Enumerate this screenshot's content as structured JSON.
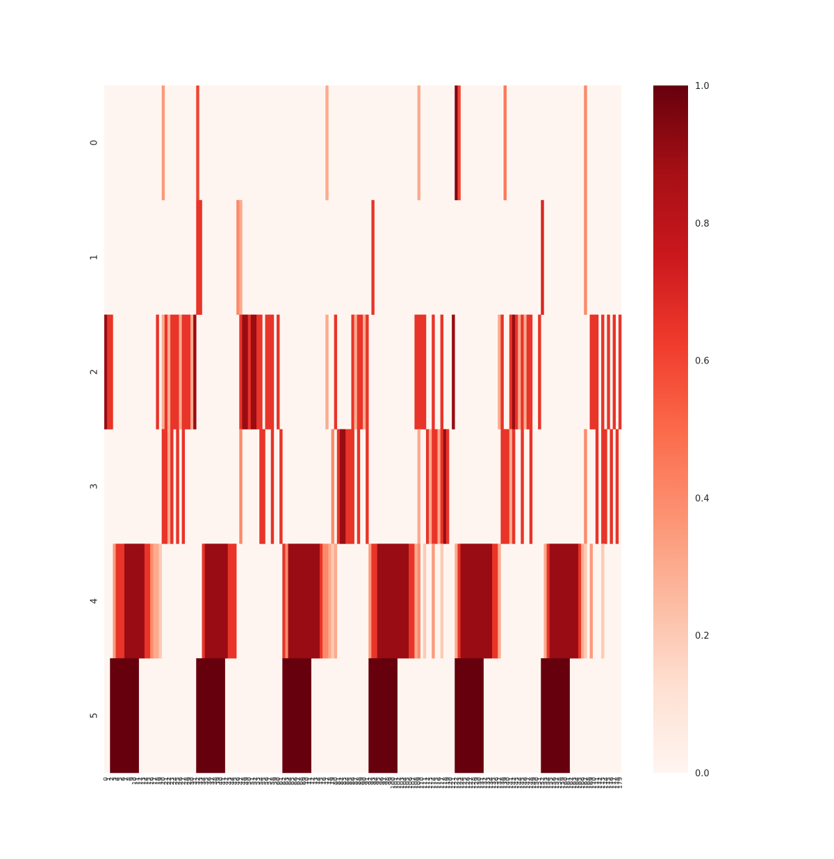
{
  "chart_data": {
    "type": "heatmap",
    "title": "",
    "xlabel": "",
    "ylabel": "",
    "n_cols": 180,
    "rows": [
      "0",
      "1",
      "2",
      "3",
      "4",
      "5"
    ],
    "colorbar": {
      "min": 0.0,
      "max": 1.0,
      "ticks": [
        "0.0",
        "0.2",
        "0.4",
        "0.6",
        "0.8",
        "1.0"
      ],
      "colormap": "Reds",
      "colors": [
        "#fff5f0",
        "#fee0d2",
        "#fcbba1",
        "#fc9272",
        "#fb6a4a",
        "#ef3b2c",
        "#cb181d",
        "#a50f15",
        "#67000d"
      ]
    },
    "cells": [
      {
        "row": 0,
        "segments": [
          [
            20,
            20,
            0.35
          ],
          [
            32,
            32,
            0.6
          ],
          [
            77,
            77,
            0.3
          ],
          [
            109,
            109,
            0.3
          ],
          [
            122,
            122,
            0.95
          ],
          [
            123,
            123,
            0.6
          ],
          [
            139,
            139,
            0.45
          ],
          [
            167,
            167,
            0.4
          ]
        ]
      },
      {
        "row": 1,
        "segments": [
          [
            32,
            33,
            0.65
          ],
          [
            46,
            46,
            0.4
          ],
          [
            47,
            47,
            0.3
          ],
          [
            93,
            93,
            0.65
          ],
          [
            152,
            152,
            0.7
          ],
          [
            167,
            167,
            0.4
          ]
        ]
      },
      {
        "row": 2,
        "segments": [
          [
            0,
            0,
            0.9
          ],
          [
            1,
            2,
            0.65
          ],
          [
            18,
            18,
            0.65
          ],
          [
            20,
            20,
            0.3
          ],
          [
            21,
            21,
            0.65
          ],
          [
            22,
            22,
            0.3
          ],
          [
            23,
            25,
            0.65
          ],
          [
            26,
            26,
            0.3
          ],
          [
            27,
            29,
            0.65
          ],
          [
            30,
            30,
            0.3
          ],
          [
            31,
            31,
            0.9
          ],
          [
            47,
            47,
            0.65
          ],
          [
            48,
            49,
            0.9
          ],
          [
            50,
            50,
            0.65
          ],
          [
            51,
            52,
            0.9
          ],
          [
            53,
            54,
            0.65
          ],
          [
            56,
            58,
            0.65
          ],
          [
            60,
            60,
            0.65
          ],
          [
            77,
            77,
            0.3
          ],
          [
            80,
            80,
            0.65
          ],
          [
            86,
            86,
            0.65
          ],
          [
            87,
            87,
            0.3
          ],
          [
            88,
            89,
            0.65
          ],
          [
            90,
            90,
            0.3
          ],
          [
            91,
            91,
            0.65
          ],
          [
            108,
            109,
            0.65
          ],
          [
            110,
            111,
            0.65
          ],
          [
            114,
            114,
            0.65
          ],
          [
            117,
            117,
            0.65
          ],
          [
            121,
            121,
            0.9
          ],
          [
            137,
            137,
            0.3
          ],
          [
            138,
            138,
            0.65
          ],
          [
            141,
            141,
            0.65
          ],
          [
            142,
            142,
            0.9
          ],
          [
            143,
            143,
            0.65
          ],
          [
            144,
            144,
            0.3
          ],
          [
            145,
            145,
            0.65
          ],
          [
            146,
            146,
            0.3
          ],
          [
            147,
            148,
            0.65
          ],
          [
            151,
            151,
            0.65
          ],
          [
            169,
            171,
            0.65
          ],
          [
            173,
            173,
            0.65
          ],
          [
            175,
            175,
            0.65
          ],
          [
            177,
            177,
            0.65
          ],
          [
            179,
            179,
            0.65
          ]
        ]
      },
      {
        "row": 3,
        "segments": [
          [
            20,
            21,
            0.65
          ],
          [
            22,
            22,
            0.3
          ],
          [
            23,
            23,
            0.65
          ],
          [
            25,
            25,
            0.65
          ],
          [
            27,
            27,
            0.65
          ],
          [
            47,
            47,
            0.4
          ],
          [
            54,
            54,
            0.65
          ],
          [
            55,
            55,
            0.65
          ],
          [
            58,
            58,
            0.65
          ],
          [
            61,
            61,
            0.65
          ],
          [
            79,
            79,
            0.4
          ],
          [
            81,
            81,
            0.65
          ],
          [
            82,
            83,
            0.9
          ],
          [
            84,
            86,
            0.65
          ],
          [
            88,
            88,
            0.65
          ],
          [
            91,
            91,
            0.65
          ],
          [
            109,
            109,
            0.3
          ],
          [
            112,
            112,
            0.65
          ],
          [
            113,
            113,
            0.3
          ],
          [
            114,
            115,
            0.65
          ],
          [
            116,
            116,
            0.3
          ],
          [
            117,
            117,
            0.65
          ],
          [
            118,
            118,
            0.9
          ],
          [
            119,
            119,
            0.65
          ],
          [
            138,
            140,
            0.65
          ],
          [
            141,
            141,
            0.3
          ],
          [
            142,
            142,
            0.65
          ],
          [
            145,
            145,
            0.65
          ],
          [
            148,
            148,
            0.65
          ],
          [
            167,
            167,
            0.4
          ],
          [
            171,
            171,
            0.65
          ],
          [
            173,
            174,
            0.65
          ],
          [
            176,
            176,
            0.65
          ],
          [
            178,
            178,
            0.65
          ]
        ]
      },
      {
        "row": 4,
        "segments": [
          [
            3,
            3,
            0.35
          ],
          [
            4,
            6,
            0.65
          ],
          [
            7,
            13,
            0.9
          ],
          [
            14,
            15,
            0.65
          ],
          [
            16,
            16,
            0.4
          ],
          [
            17,
            18,
            0.3
          ],
          [
            19,
            19,
            0.2
          ],
          [
            34,
            34,
            0.65
          ],
          [
            35,
            42,
            0.9
          ],
          [
            43,
            45,
            0.65
          ],
          [
            62,
            62,
            0.65
          ],
          [
            63,
            63,
            0.4
          ],
          [
            64,
            74,
            0.9
          ],
          [
            75,
            75,
            0.65
          ],
          [
            76,
            77,
            0.4
          ],
          [
            78,
            78,
            0.3
          ],
          [
            79,
            79,
            0.2
          ],
          [
            80,
            80,
            0.3
          ],
          [
            92,
            92,
            0.35
          ],
          [
            93,
            94,
            0.65
          ],
          [
            95,
            105,
            0.9
          ],
          [
            106,
            107,
            0.65
          ],
          [
            108,
            108,
            0.3
          ],
          [
            109,
            109,
            0.4
          ],
          [
            111,
            111,
            0.2
          ],
          [
            114,
            114,
            0.35
          ],
          [
            117,
            117,
            0.2
          ],
          [
            122,
            122,
            0.3
          ],
          [
            123,
            123,
            0.65
          ],
          [
            124,
            134,
            0.9
          ],
          [
            135,
            136,
            0.65
          ],
          [
            137,
            137,
            0.3
          ],
          [
            153,
            153,
            0.3
          ],
          [
            154,
            154,
            0.65
          ],
          [
            155,
            164,
            0.9
          ],
          [
            165,
            165,
            0.65
          ],
          [
            166,
            166,
            0.3
          ],
          [
            167,
            167,
            0.2
          ],
          [
            169,
            169,
            0.35
          ],
          [
            173,
            173,
            0.2
          ]
        ]
      },
      {
        "row": 5,
        "segments": [
          [
            2,
            11,
            1.0
          ],
          [
            32,
            41,
            1.0
          ],
          [
            62,
            71,
            1.0
          ],
          [
            92,
            101,
            1.0
          ],
          [
            122,
            131,
            1.0
          ],
          [
            152,
            161,
            1.0
          ]
        ]
      }
    ]
  }
}
